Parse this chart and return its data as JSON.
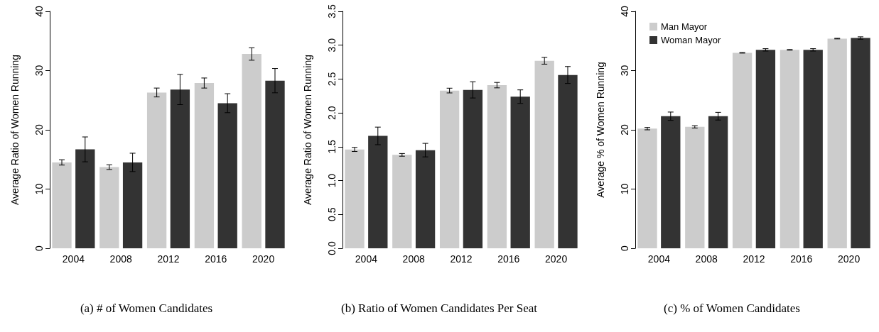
{
  "chart_data": [
    {
      "type": "bar",
      "title": "(a) # of Women Candidates",
      "ylabel": "Average Ratio of Women Running",
      "categories": [
        "2004",
        "2008",
        "2012",
        "2016",
        "2020"
      ],
      "ylim": [
        0,
        40
      ],
      "yticks": [
        0,
        10,
        20,
        30,
        40
      ],
      "grid": false,
      "legend": false,
      "series": [
        {
          "color": "#cccccc",
          "values": [
            14.5,
            13.7,
            26.3,
            27.9,
            32.8
          ],
          "errors": [
            0.45,
            0.4,
            0.75,
            0.85,
            1.05
          ]
        },
        {
          "color": "#333333",
          "values": [
            16.7,
            14.5,
            26.8,
            24.5,
            28.3
          ],
          "errors": [
            2.1,
            1.55,
            2.55,
            1.6,
            2.05
          ]
        }
      ]
    },
    {
      "type": "bar",
      "title": "(b) Ratio of Women Candidates Per Seat",
      "ylabel": "Average Ratio of Women Running",
      "categories": [
        "2004",
        "2008",
        "2012",
        "2016",
        "2020"
      ],
      "ylim": [
        0,
        3.5
      ],
      "yticks": [
        {
          "value": 0,
          "label": "0.0"
        },
        0.5,
        {
          "value": 1,
          "label": "1.0"
        },
        1.5,
        {
          "value": 2,
          "label": "2.0"
        },
        2.5,
        {
          "value": 3,
          "label": "3.0"
        },
        3.5
      ],
      "grid": false,
      "legend": false,
      "series": [
        {
          "color": "#cccccc",
          "values": [
            1.46,
            1.38,
            2.33,
            2.41,
            2.77
          ],
          "errors": [
            0.03,
            0.02,
            0.035,
            0.04,
            0.05
          ]
        },
        {
          "color": "#333333",
          "values": [
            1.66,
            1.45,
            2.34,
            2.24,
            2.56
          ],
          "errors": [
            0.13,
            0.1,
            0.12,
            0.1,
            0.125
          ]
        }
      ]
    },
    {
      "type": "bar",
      "title": "(c) % of Women Candidates",
      "ylabel": "Average % of Women Running",
      "categories": [
        "2004",
        "2008",
        "2012",
        "2016",
        "2020"
      ],
      "ylim": [
        0,
        40
      ],
      "yticks": [
        0,
        10,
        20,
        30,
        40
      ],
      "grid": false,
      "legend": "top left",
      "series": [
        {
          "name": "Man Mayor",
          "color": "#cccccc",
          "values": [
            20.2,
            20.5,
            33.0,
            33.5,
            35.4
          ],
          "errors": [
            0.2,
            0.2,
            0.05,
            0.05,
            0.05
          ]
        },
        {
          "name": "Woman Mayor",
          "color": "#333333",
          "values": [
            22.3,
            22.3,
            33.5,
            33.5,
            35.5
          ],
          "errors": [
            0.7,
            0.65,
            0.2,
            0.2,
            0.2
          ]
        }
      ]
    }
  ]
}
